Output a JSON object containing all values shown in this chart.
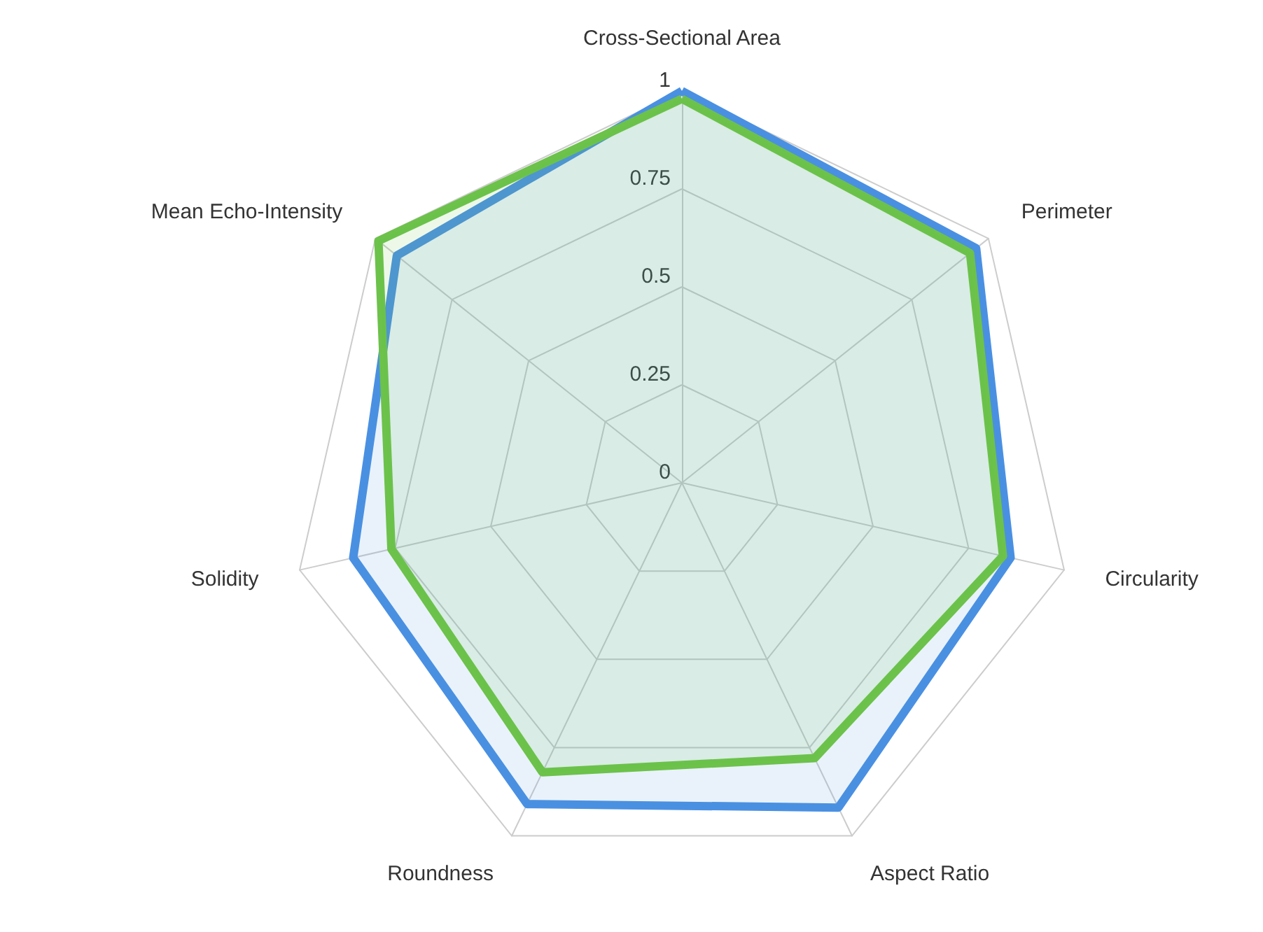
{
  "chart_data": {
    "type": "radar",
    "categories": [
      "Cross-Sectional Area",
      "Perimeter",
      "Circularity",
      "Aspect Ratio",
      "Roundness",
      "Solidity",
      "Mean Echo-Intensity"
    ],
    "series": [
      {
        "color": "#4a90e2",
        "values": [
          1.0,
          0.96,
          0.86,
          0.92,
          0.91,
          0.86,
          0.93
        ]
      },
      {
        "color": "#6cc24a",
        "values": [
          0.98,
          0.94,
          0.84,
          0.78,
          0.82,
          0.76,
          0.99
        ]
      }
    ],
    "ylim": [
      0,
      1
    ],
    "yticks": [
      0,
      0.25,
      0.5,
      0.75,
      1
    ],
    "grid": true
  }
}
